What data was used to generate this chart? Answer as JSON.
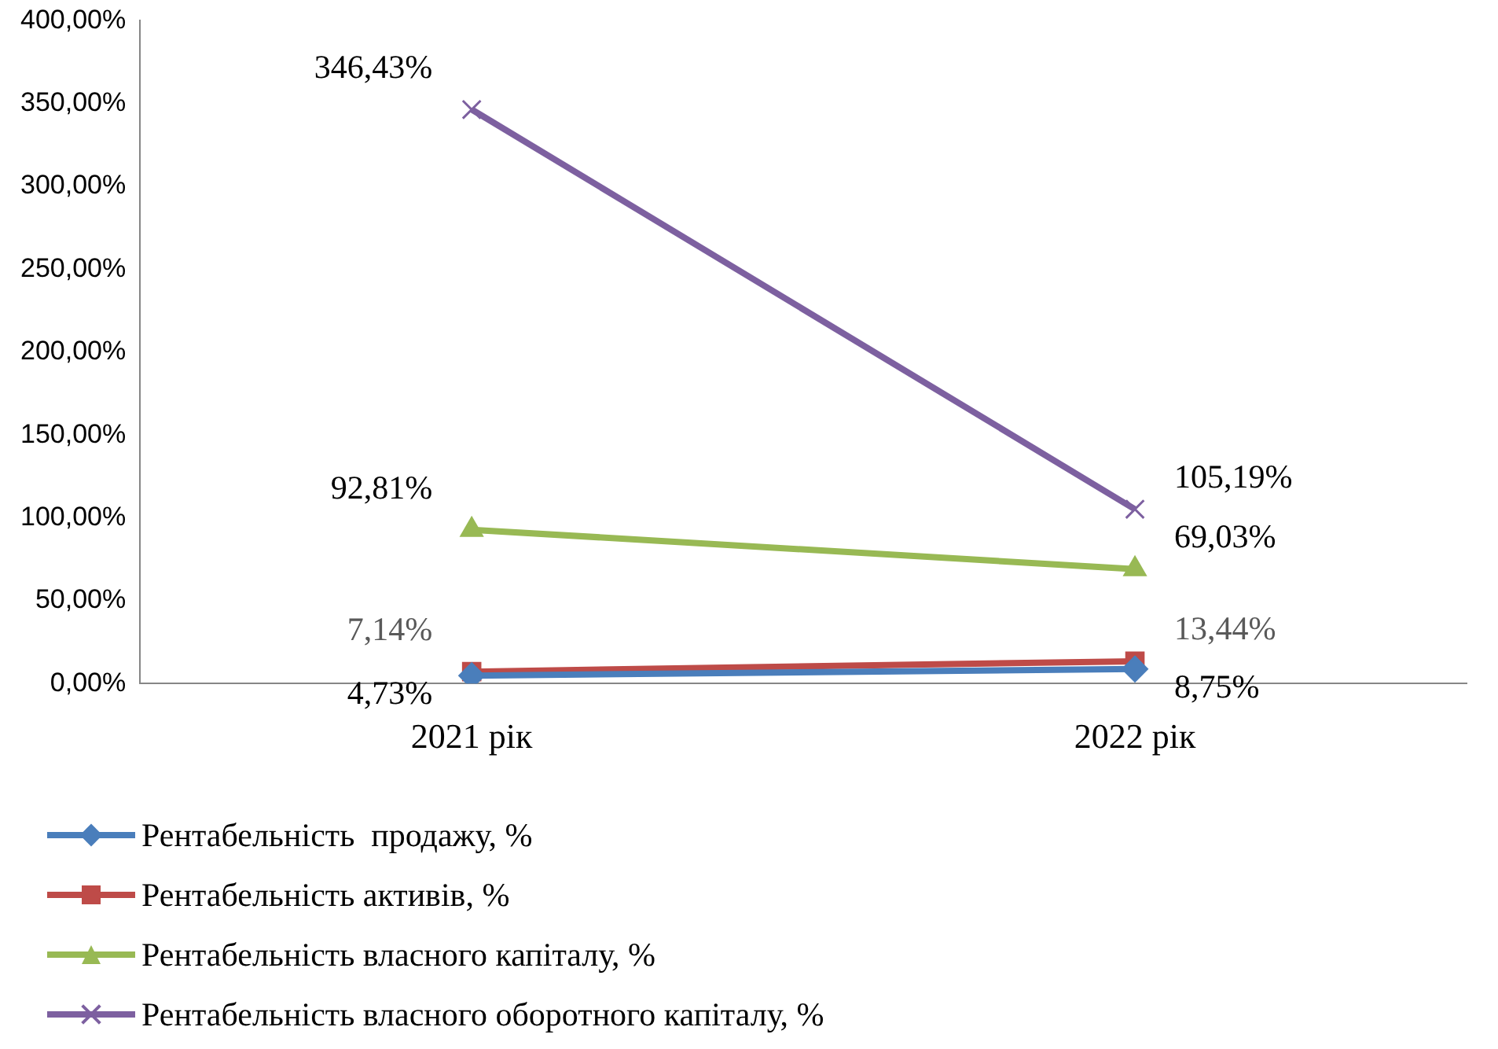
{
  "chart_data": {
    "type": "line",
    "categories": [
      "2021 рік",
      "2022 рік"
    ],
    "ylim": [
      0,
      400
    ],
    "yticks": [
      {
        "value": 0,
        "label": "0,00%"
      },
      {
        "value": 50,
        "label": "50,00%"
      },
      {
        "value": 100,
        "label": "100,00%"
      },
      {
        "value": 150,
        "label": "150,00%"
      },
      {
        "value": 200,
        "label": "200,00%"
      },
      {
        "value": 250,
        "label": "250,00%"
      },
      {
        "value": 300,
        "label": "300,00%"
      },
      {
        "value": 350,
        "label": "350,00%"
      },
      {
        "value": 400,
        "label": "400,00%"
      }
    ],
    "grid": false,
    "legend": "bottom",
    "line_style": "solid",
    "series": [
      {
        "name": "Рентабельність  продажу, %",
        "color": "#4a7ebb",
        "marker": "diamond",
        "values": [
          4.73,
          8.75
        ],
        "value_labels": [
          "4,73%",
          "8,75%"
        ]
      },
      {
        "name": "Рентабельність активів, %",
        "color": "#be4b48",
        "marker": "square",
        "values": [
          7.14,
          13.44
        ],
        "value_labels": [
          "7,14%",
          "13,44%"
        ]
      },
      {
        "name": "Рентабельність власного капіталу, %",
        "color": "#98b954",
        "marker": "triangle",
        "values": [
          92.81,
          69.03
        ],
        "value_labels": [
          "92,81%",
          "69,03%"
        ]
      },
      {
        "name": "Рентабельність власного оборотного капіталу, %",
        "color": "#7d60a0",
        "marker": "cross",
        "values": [
          346.43,
          105.19
        ],
        "value_labels": [
          "346,43%",
          "105,19%"
        ]
      }
    ]
  }
}
